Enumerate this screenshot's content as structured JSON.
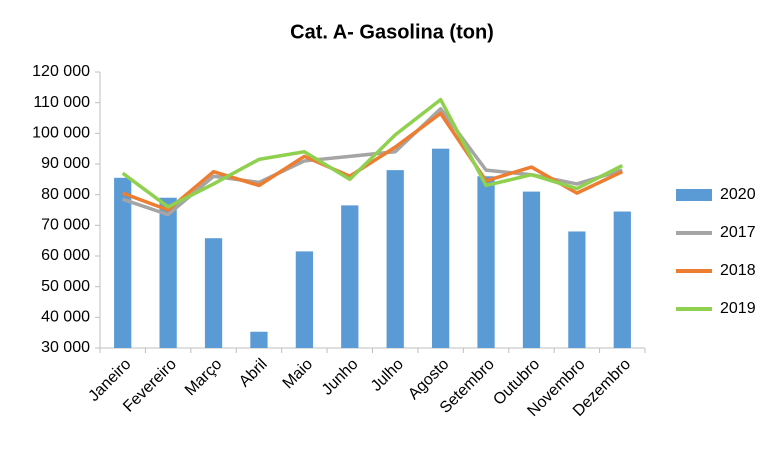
{
  "chart_data": {
    "type": "bar",
    "title": "Cat. A- Gasolina (ton)",
    "categories": [
      "Janeiro",
      "Fevereiro",
      "Março",
      "Abril",
      "Maio",
      "Junho",
      "Julho",
      "Agosto",
      "Setembro",
      "Outubro",
      "Novembro",
      "Dezembro"
    ],
    "series": [
      {
        "name": "2020",
        "type": "bar",
        "color": "#5b9bd5",
        "values": [
          85500,
          79000,
          65800,
          35300,
          61500,
          76500,
          88000,
          95000,
          86000,
          81000,
          68000,
          74500
        ]
      },
      {
        "name": "2017",
        "type": "line",
        "color": "#a5a5a5",
        "values": [
          78500,
          73500,
          86000,
          84000,
          91000,
          92500,
          94000,
          108000,
          88000,
          86500,
          83500,
          88000
        ]
      },
      {
        "name": "2018",
        "type": "line",
        "color": "#ed7d31",
        "values": [
          80500,
          75000,
          87500,
          83000,
          92500,
          86000,
          95500,
          106500,
          84500,
          89000,
          80500,
          87500
        ]
      },
      {
        "name": "2019",
        "type": "line",
        "color": "#8fd14f",
        "values": [
          87000,
          76000,
          83500,
          91500,
          94000,
          85000,
          99500,
          111000,
          83000,
          86500,
          82000,
          89500
        ]
      }
    ],
    "ylim": [
      30000,
      120000
    ],
    "yticks": [
      {
        "value": 30000,
        "label": "30 000"
      },
      {
        "value": 40000,
        "label": "40 000"
      },
      {
        "value": 50000,
        "label": "50 000"
      },
      {
        "value": 60000,
        "label": "60 000"
      },
      {
        "value": 70000,
        "label": "70 000"
      },
      {
        "value": 80000,
        "label": "80 000"
      },
      {
        "value": 90000,
        "label": "90 000"
      },
      {
        "value": 100000,
        "label": "100 000"
      },
      {
        "value": 110000,
        "label": "110 000"
      },
      {
        "value": 120000,
        "label": "120 000"
      }
    ],
    "grid": false,
    "legend": "right"
  }
}
